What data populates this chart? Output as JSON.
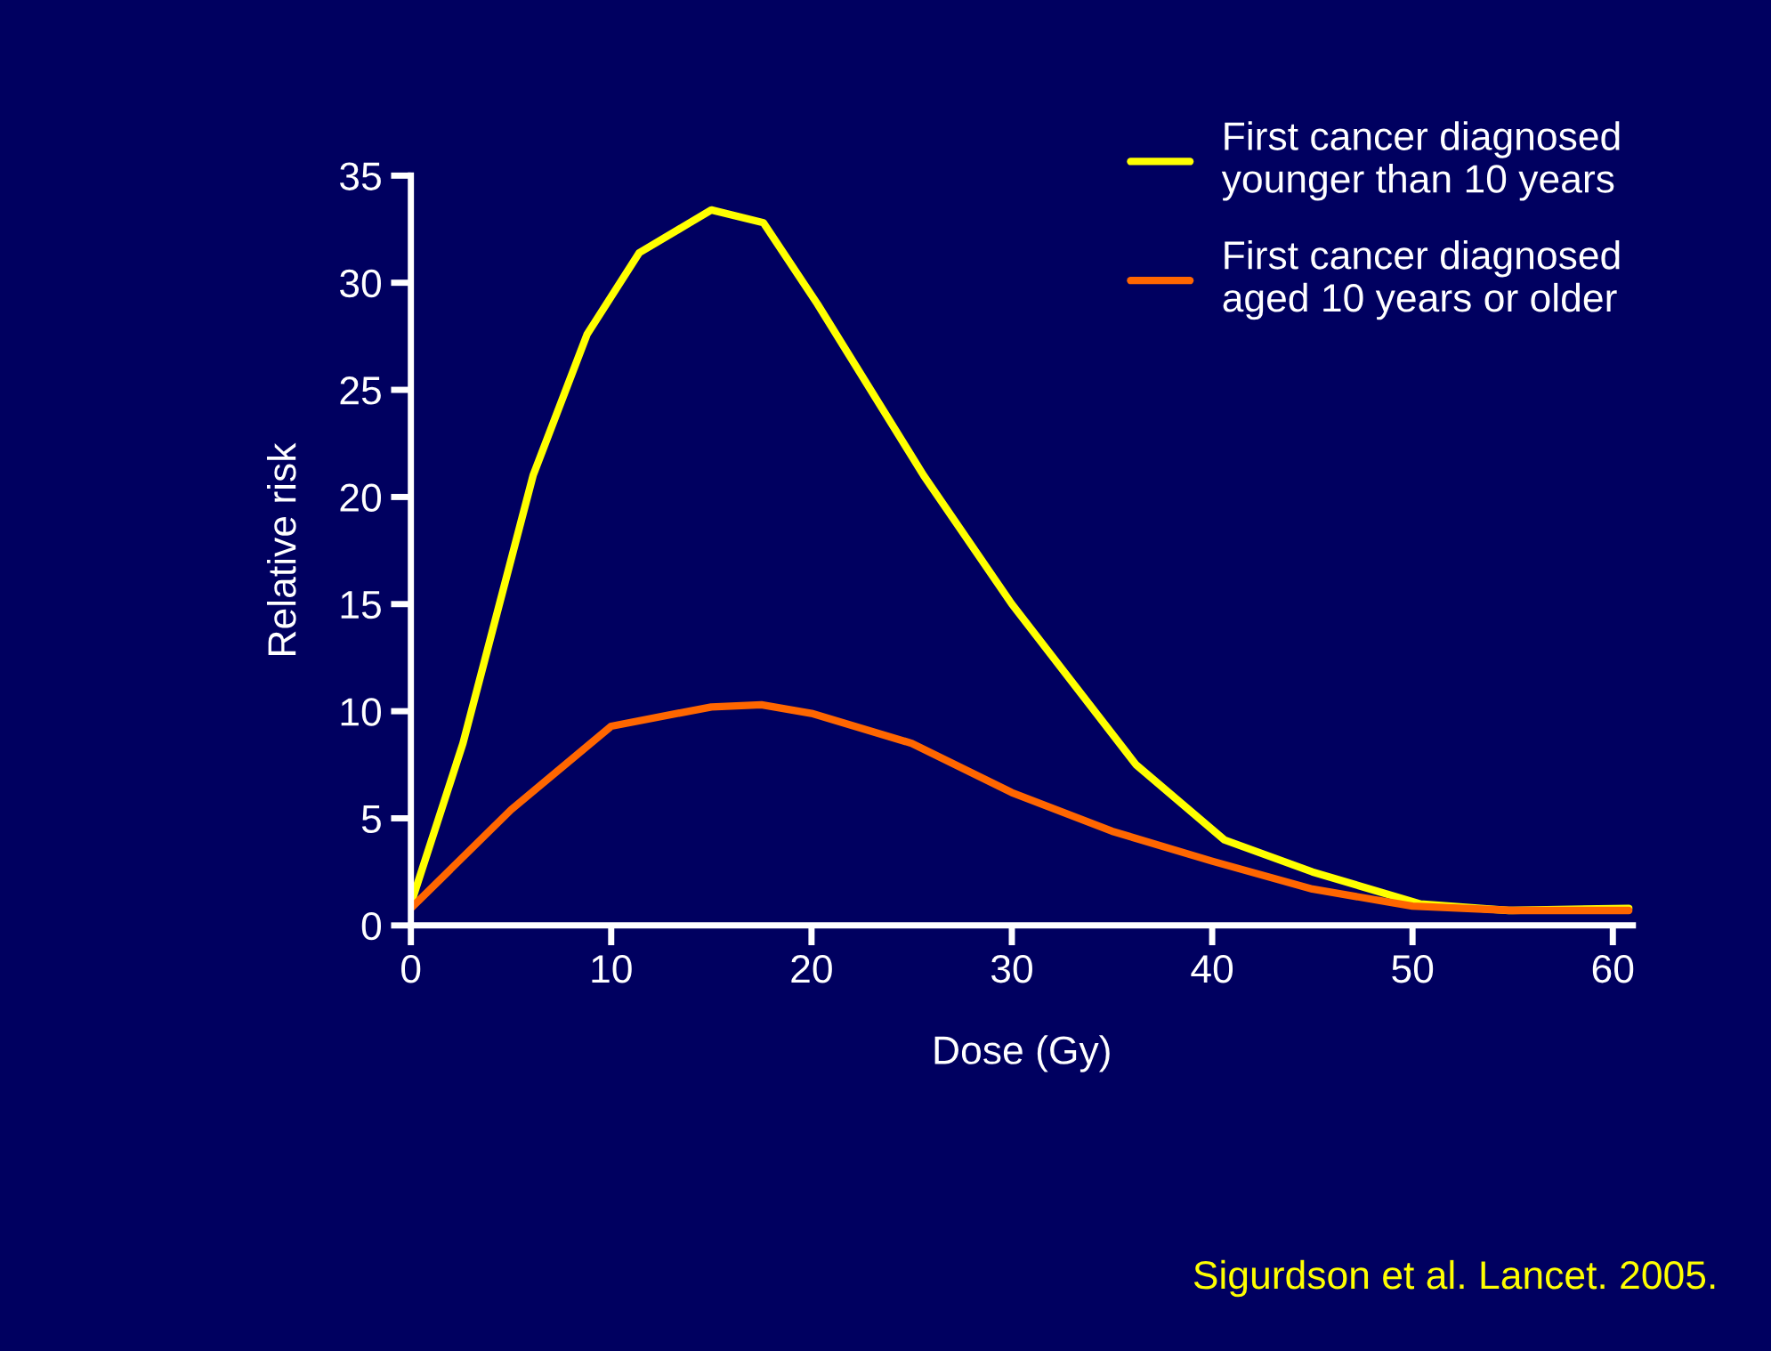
{
  "chart_data": {
    "type": "line",
    "xlabel": "Dose (Gy)",
    "ylabel": "Relative risk",
    "xlim": [
      0,
      61
    ],
    "xticks": [
      0,
      10,
      20,
      30,
      40,
      50,
      60
    ],
    "ylim": [
      0,
      35
    ],
    "yticks": [
      0,
      5,
      10,
      15,
      20,
      25,
      30,
      35
    ],
    "grid": false,
    "legend": "top right",
    "marker": "none",
    "line_style": "solid",
    "series": [
      {
        "name": "First cancer diagnosed\nyounger than 10 years",
        "color": "#ffff00",
        "x": [
          0,
          2.6,
          6.1,
          8.8,
          11.4,
          15,
          17.6,
          20.3,
          25.6,
          30,
          36.2,
          40.6,
          45,
          50.4,
          54.8,
          60.8
        ],
        "values": [
          1,
          8.5,
          21,
          27.6,
          31.4,
          33.4,
          32.8,
          29,
          21,
          15,
          7.5,
          4,
          2.5,
          1,
          0.7,
          0.8
        ]
      },
      {
        "name": "First cancer diagnosed\naged 10 years or older",
        "color": "#ff6600",
        "x": [
          0,
          5,
          10,
          15,
          17.5,
          20,
          25,
          30,
          35,
          40,
          45,
          50,
          55,
          60.8
        ],
        "values": [
          0.8,
          5.4,
          9.3,
          10.2,
          10.3,
          9.9,
          8.5,
          6.2,
          4.4,
          3,
          1.7,
          0.9,
          0.7,
          0.7
        ]
      }
    ],
    "annotations": [
      "Sigurdson et al. Lancet. 2005."
    ]
  }
}
